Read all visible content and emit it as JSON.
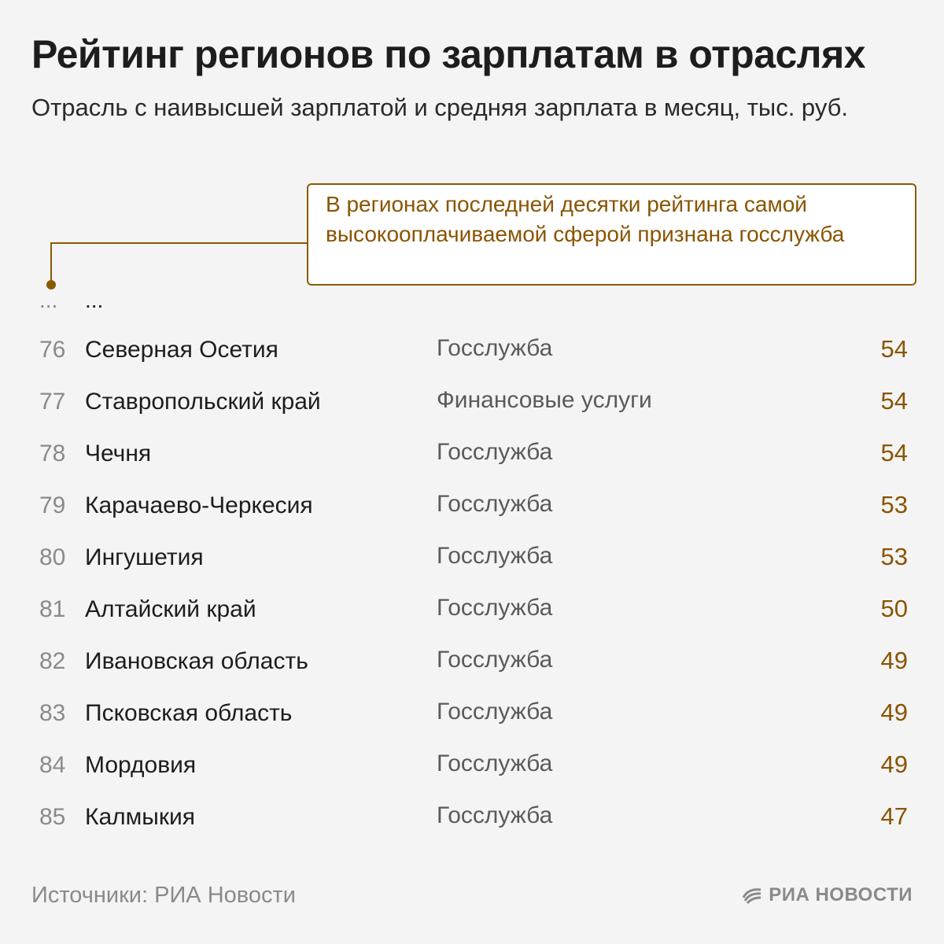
{
  "title": "Рейтинг регионов по зарплатам в отраслях",
  "subtitle": "Отрасль с наивысшей зарплатой и средняя зарплата в месяц, тыс. руб.",
  "callout": "В регионах последней десятки рейтинга самой высокооплачиваемой сферой признана госслужба",
  "ellipsis": {
    "rank": "...",
    "region": "..."
  },
  "colors": {
    "accent": "#8a5400",
    "background": "#f4f4f4",
    "muted": "#8a8a8a"
  },
  "chart_data": {
    "type": "table",
    "title": "Рейтинг регионов по зарплатам в отраслях",
    "subtitle": "Отрасль с наивысшей зарплатой и средняя зарплата в месяц, тыс. руб.",
    "rows": [
      {
        "rank": "76",
        "region": "Северная Осетия",
        "industry": "Госслужба",
        "value": "54"
      },
      {
        "rank": "77",
        "region": "Ставропольский край",
        "industry": "Финансовые услуги",
        "value": "54"
      },
      {
        "rank": "78",
        "region": "Чечня",
        "industry": "Госслужба",
        "value": "54"
      },
      {
        "rank": "79",
        "region": "Карачаево-Черкесия",
        "industry": "Госслужба",
        "value": "53"
      },
      {
        "rank": "80",
        "region": "Ингушетия",
        "industry": "Госслужба",
        "value": "53"
      },
      {
        "rank": "81",
        "region": "Алтайский край",
        "industry": "Госслужба",
        "value": "50"
      },
      {
        "rank": "82",
        "region": "Ивановская область",
        "industry": "Госслужба",
        "value": "49"
      },
      {
        "rank": "83",
        "region": "Псковская область",
        "industry": "Госслужба",
        "value": "49"
      },
      {
        "rank": "84",
        "region": "Мордовия",
        "industry": "Госслужба",
        "value": "49"
      },
      {
        "rank": "85",
        "region": "Калмыкия",
        "industry": "Госслужба",
        "value": "47"
      }
    ]
  },
  "source": "Источники: РИА Новости",
  "logo": {
    "text": "РИА НОВОСТИ",
    "icon": "ria-logo-icon"
  }
}
